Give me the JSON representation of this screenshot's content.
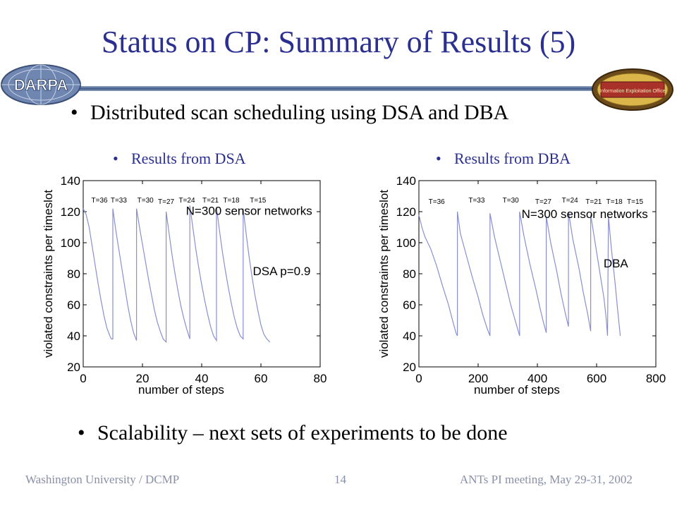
{
  "slide": {
    "title": "Status on CP: Summary of Results (5)",
    "bullet1": "Distributed scan scheduling using DSA and DBA",
    "sub_left": "Results from DSA",
    "sub_right": "Results from DBA",
    "bullet2": "Scalability – next sets of experiments to be done",
    "bullet_glyph": "•",
    "logo_left_text": "DARPA",
    "logo_right_text": "Information Exploitation Office",
    "footer_left": "Washington University / DCMP",
    "footer_center": "14",
    "footer_right": "ANTs PI meeting, May 29-31, 2002"
  },
  "chart_data": [
    {
      "type": "line",
      "xlabel": "number of steps",
      "ylabel": "violated constraints per timeslot",
      "xlim": [
        0,
        80
      ],
      "ylim": [
        20,
        140
      ],
      "xticks": [
        0,
        20,
        40,
        60,
        80
      ],
      "yticks": [
        20,
        40,
        60,
        80,
        100,
        120,
        140
      ],
      "grid": false,
      "line_color": "#8a8fd0",
      "annotations": [
        {
          "text": "N=300 sensor networks",
          "x": 56,
          "y": 118,
          "size": "large"
        },
        {
          "text": "DSA p=0.9",
          "x": 67,
          "y": 79,
          "size": "large"
        },
        {
          "text": "T=36",
          "x": 5.5,
          "y": 126,
          "size": "small"
        },
        {
          "text": "T=33",
          "x": 12,
          "y": 126,
          "size": "small"
        },
        {
          "text": "T=30",
          "x": 21,
          "y": 126,
          "size": "small"
        },
        {
          "text": "T=27",
          "x": 28,
          "y": 125,
          "size": "small"
        },
        {
          "text": "T=24",
          "x": 35,
          "y": 126,
          "size": "small"
        },
        {
          "text": "T=21",
          "x": 43,
          "y": 126,
          "size": "small"
        },
        {
          "text": "T=18",
          "x": 50,
          "y": 126,
          "size": "small"
        },
        {
          "text": "T=15",
          "x": 59,
          "y": 126,
          "size": "small"
        }
      ],
      "series": [
        {
          "points": [
            [
              0,
              122
            ],
            [
              1,
              118
            ],
            [
              2,
              110
            ],
            [
              3,
              98
            ],
            [
              4,
              86
            ],
            [
              5,
              74
            ],
            [
              6,
              63
            ],
            [
              7,
              53
            ],
            [
              8,
              45
            ],
            [
              9,
              40
            ],
            [
              9.5,
              38
            ],
            [
              10,
              38
            ],
            [
              10,
              122
            ],
            [
              11,
              108
            ],
            [
              12,
              96
            ],
            [
              13,
              84
            ],
            [
              14,
              72
            ],
            [
              15,
              60
            ],
            [
              16,
              50
            ],
            [
              17,
              42
            ],
            [
              18,
              37
            ],
            [
              18,
              122
            ],
            [
              19,
              110
            ],
            [
              20,
              99
            ],
            [
              21,
              88
            ],
            [
              22,
              77
            ],
            [
              23,
              67
            ],
            [
              24,
              57
            ],
            [
              25,
              49
            ],
            [
              26,
              43
            ],
            [
              27,
              38
            ],
            [
              28,
              36
            ],
            [
              28,
              120
            ],
            [
              29,
              106
            ],
            [
              30,
              92
            ],
            [
              31,
              80
            ],
            [
              32,
              69
            ],
            [
              33,
              59
            ],
            [
              34,
              51
            ],
            [
              35,
              44
            ],
            [
              36,
              38
            ],
            [
              36,
              124
            ],
            [
              37,
              110
            ],
            [
              38,
              96
            ],
            [
              39,
              84
            ],
            [
              40,
              73
            ],
            [
              41,
              63
            ],
            [
              42,
              54
            ],
            [
              43,
              46
            ],
            [
              44,
              40
            ],
            [
              45,
              37
            ],
            [
              45,
              123
            ],
            [
              46,
              108
            ],
            [
              47,
              94
            ],
            [
              48,
              82
            ],
            [
              49,
              71
            ],
            [
              50,
              61
            ],
            [
              51,
              52
            ],
            [
              52,
              45
            ],
            [
              53,
              40
            ],
            [
              54,
              38
            ],
            [
              54,
              122
            ],
            [
              55,
              106
            ],
            [
              56,
              91
            ],
            [
              57,
              78
            ],
            [
              58,
              66
            ],
            [
              59,
              56
            ],
            [
              60,
              47
            ],
            [
              61,
              41
            ],
            [
              62,
              38
            ],
            [
              63,
              36
            ]
          ]
        }
      ]
    },
    {
      "type": "line",
      "xlabel": "number of steps",
      "ylabel": "violated constraints per timeslot",
      "xlim": [
        0,
        800
      ],
      "ylim": [
        20,
        140
      ],
      "xticks": [
        0,
        200,
        400,
        600,
        800
      ],
      "yticks": [
        20,
        40,
        60,
        80,
        100,
        120,
        140
      ],
      "grid": false,
      "line_color": "#8a8fd0",
      "annotations": [
        {
          "text": "N=300 sensor networks",
          "x": 560,
          "y": 116,
          "size": "large"
        },
        {
          "text": "DBA",
          "x": 665,
          "y": 84,
          "size": "large"
        },
        {
          "text": "T=36",
          "x": 60,
          "y": 125,
          "size": "small"
        },
        {
          "text": "T=33",
          "x": 195,
          "y": 126,
          "size": "small"
        },
        {
          "text": "T=30",
          "x": 310,
          "y": 126,
          "size": "small"
        },
        {
          "text": "T=27",
          "x": 420,
          "y": 125,
          "size": "small"
        },
        {
          "text": "T=24",
          "x": 510,
          "y": 126,
          "size": "small"
        },
        {
          "text": "T=21",
          "x": 590,
          "y": 125,
          "size": "small"
        },
        {
          "text": "T=18",
          "x": 660,
          "y": 125,
          "size": "small"
        },
        {
          "text": "T=15",
          "x": 730,
          "y": 125,
          "size": "small"
        }
      ],
      "series": [
        {
          "points": [
            [
              0,
              118
            ],
            [
              10,
              110
            ],
            [
              20,
              104
            ],
            [
              40,
              96
            ],
            [
              60,
              85
            ],
            [
              80,
              72
            ],
            [
              100,
              60
            ],
            [
              115,
              49
            ],
            [
              125,
              42
            ],
            [
              130,
              40
            ],
            [
              130,
              120
            ],
            [
              140,
              106
            ],
            [
              160,
              92
            ],
            [
              180,
              78
            ],
            [
              200,
              65
            ],
            [
              215,
              54
            ],
            [
              230,
              45
            ],
            [
              240,
              40
            ],
            [
              240,
              119
            ],
            [
              255,
              104
            ],
            [
              275,
              88
            ],
            [
              295,
              72
            ],
            [
              310,
              60
            ],
            [
              325,
              50
            ],
            [
              340,
              40
            ],
            [
              340,
              120
            ],
            [
              355,
              104
            ],
            [
              375,
              86
            ],
            [
              395,
              70
            ],
            [
              410,
              57
            ],
            [
              420,
              49
            ],
            [
              430,
              42
            ],
            [
              430,
              117
            ],
            [
              445,
              100
            ],
            [
              465,
              82
            ],
            [
              480,
              67
            ],
            [
              495,
              54
            ],
            [
              505,
              46
            ],
            [
              505,
              120
            ],
            [
              520,
              102
            ],
            [
              540,
              84
            ],
            [
              555,
              68
            ],
            [
              570,
              54
            ],
            [
              580,
              43
            ],
            [
              580,
              118
            ],
            [
              595,
              100
            ],
            [
              610,
              82
            ],
            [
              625,
              64
            ],
            [
              632,
              52
            ],
            [
              637,
              40
            ],
            [
              640,
              117
            ],
            [
              650,
              96
            ],
            [
              662,
              75
            ],
            [
              672,
              55
            ],
            [
              680,
              40
            ]
          ]
        }
      ]
    }
  ]
}
